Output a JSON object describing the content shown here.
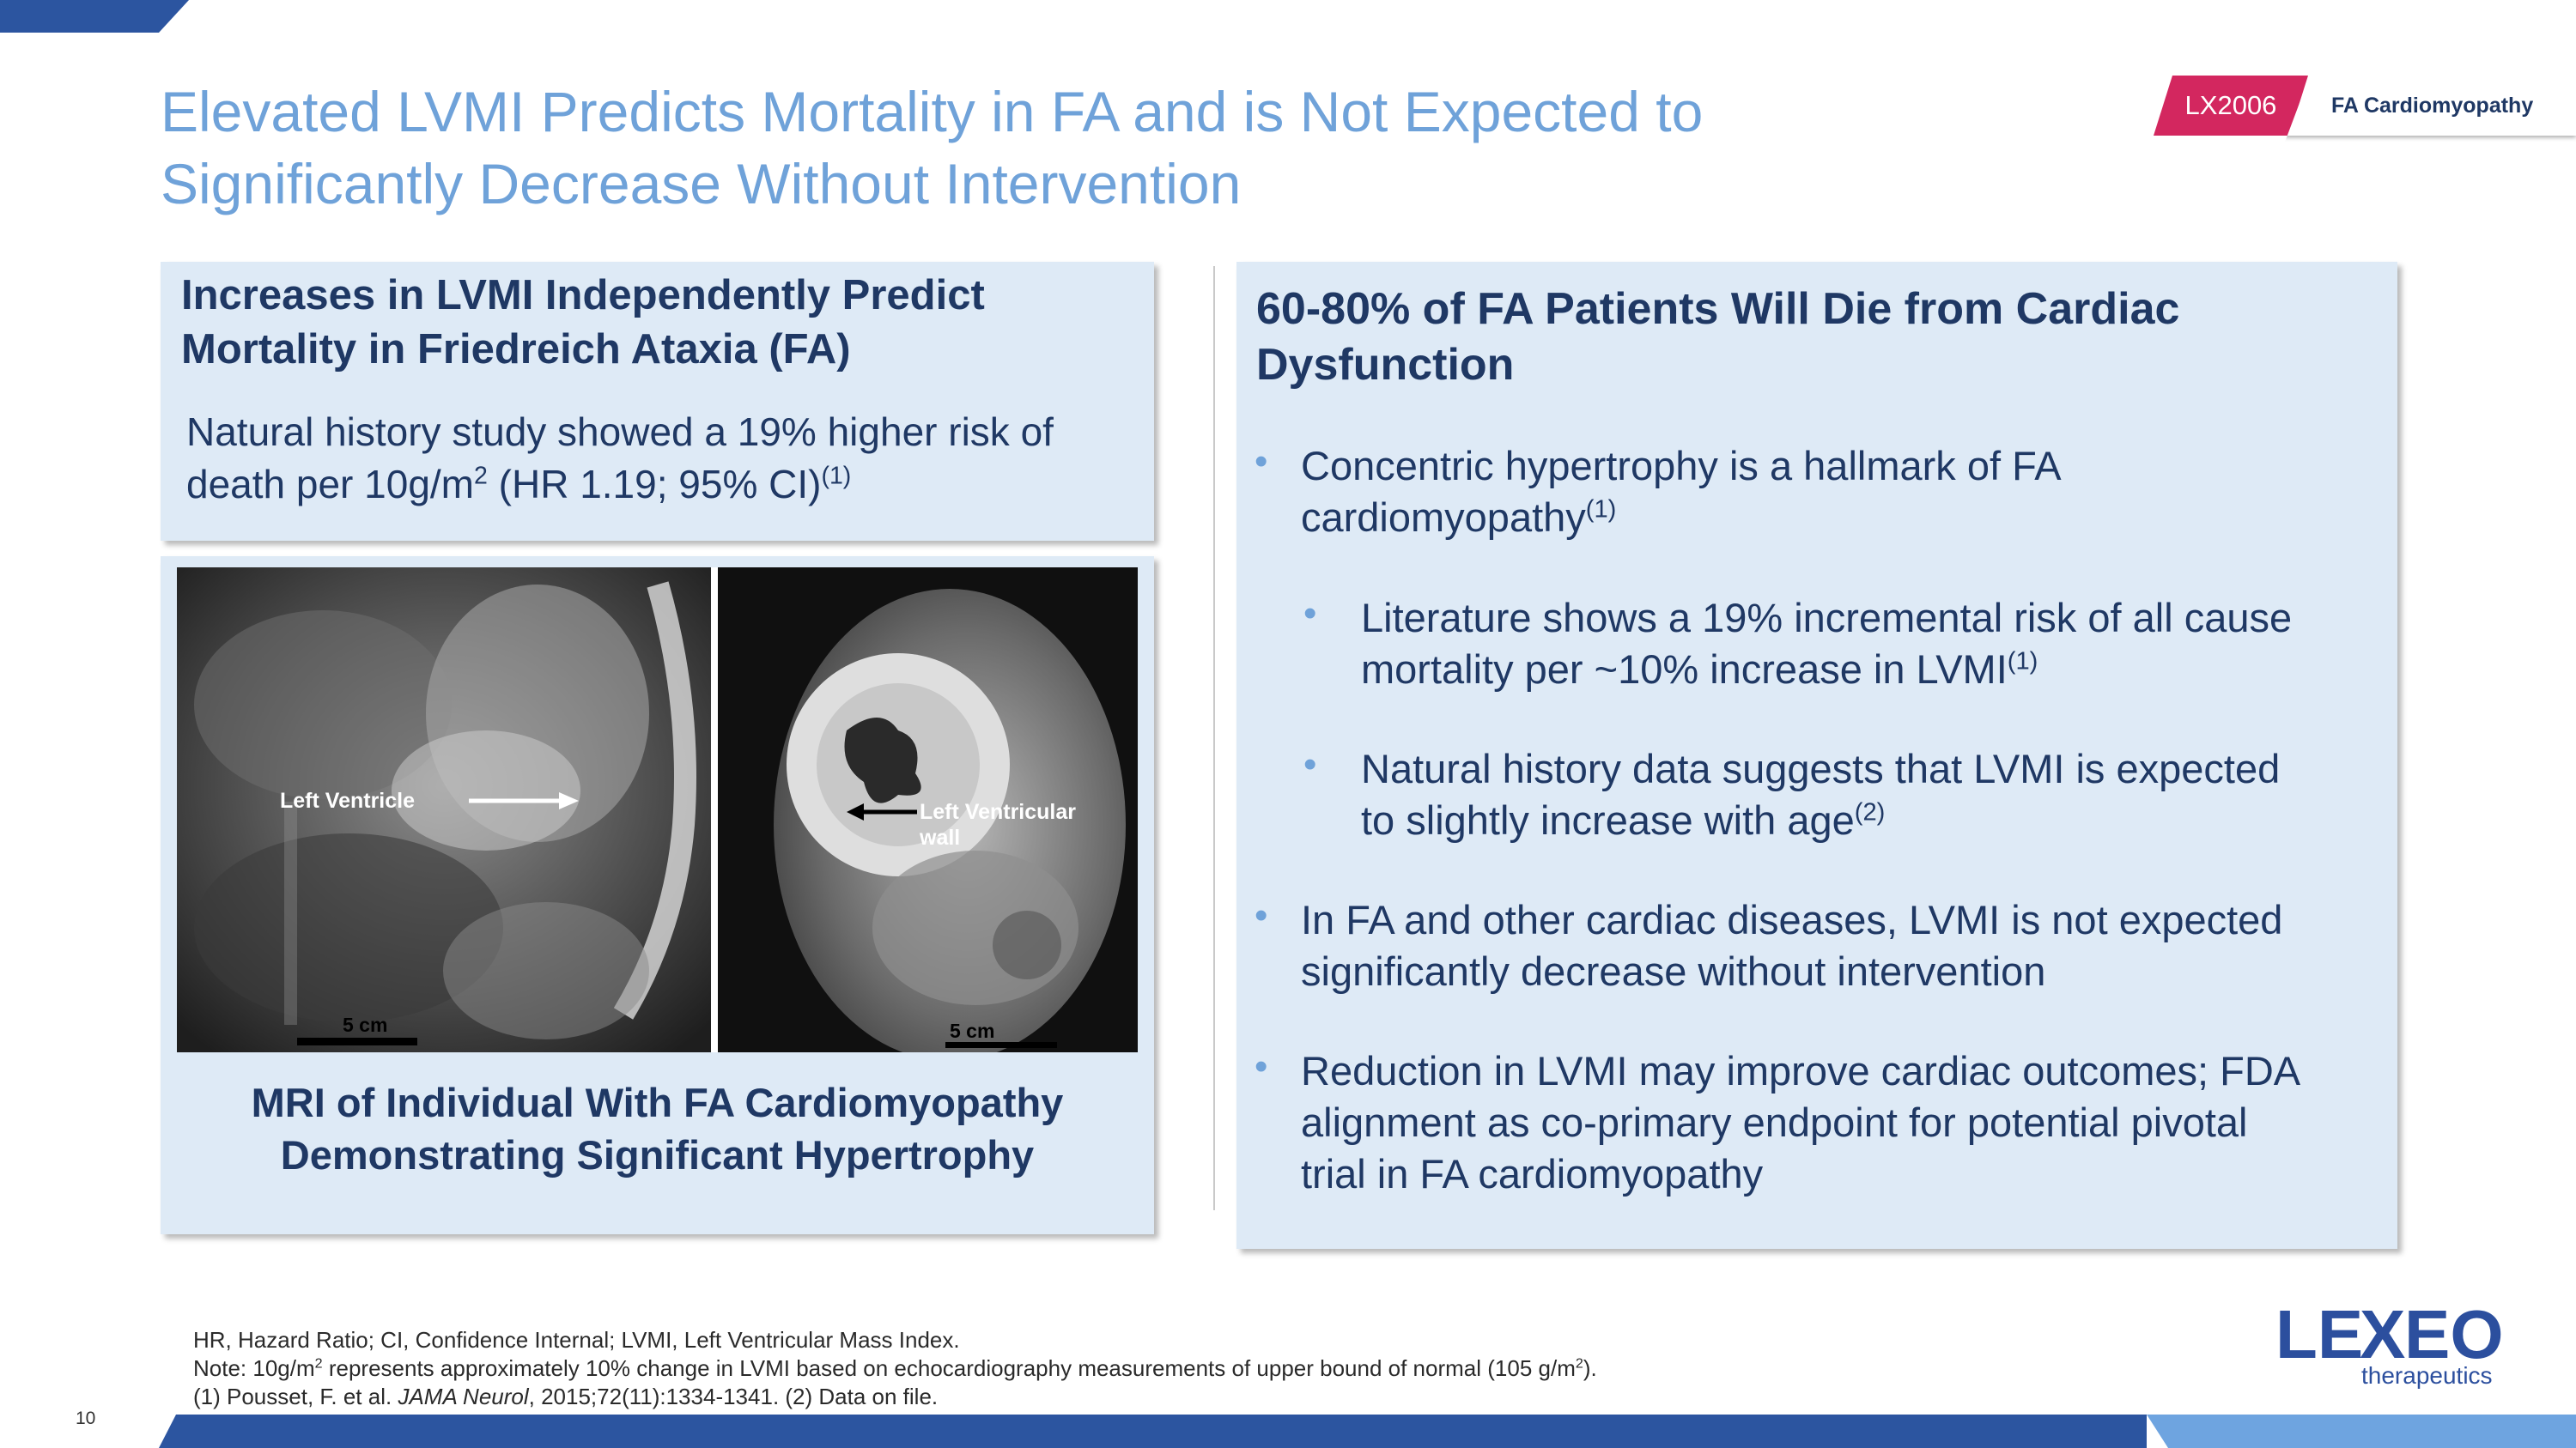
{
  "header": {
    "title_line1": "Elevated LVMI Predicts Mortality in FA and is Not Expected to",
    "title_line2": "Significantly Decrease Without Intervention",
    "tag_code": "LX2006",
    "tag_label": "FA Cardiomyopathy"
  },
  "left_panel": {
    "heading_line1": "Increases in LVMI Independently Predict",
    "heading_line2": "Mortality in Friedreich Ataxia (FA)",
    "body_line1": "Natural history study showed a 19% higher risk of",
    "body_line2_pre": "death per 10g/m",
    "body_line2_sup": "2",
    "body_line2_post": " (HR 1.19; 95% CI)",
    "body_ref": "(1)"
  },
  "image_panel": {
    "label_left": "Left Ventricle",
    "label_right_1": "Left Ventricular",
    "label_right_2": "wall",
    "scale_left": "5 cm",
    "scale_right": "5 cm",
    "caption_line1": "MRI of Individual With FA Cardiomyopathy",
    "caption_line2": "Demonstrating Significant Hypertrophy"
  },
  "right_panel": {
    "heading_line1": "60-80% of FA Patients Will Die from Cardiac",
    "heading_line2": "Dysfunction",
    "bullets": [
      {
        "line1": "Concentric hypertrophy is a hallmark of FA",
        "line2": "cardiomyopathy",
        "ref": "(1)",
        "line3": ""
      },
      {
        "line1": "Literature shows a 19% incremental risk of all cause",
        "line2": "mortality per ~10% increase in LVMI",
        "ref": "(1)",
        "line3": ""
      },
      {
        "line1": "Natural history data suggests that LVMI is expected",
        "line2": "to slightly increase with age",
        "ref": "(2)",
        "line3": ""
      },
      {
        "line1": "In FA and other cardiac diseases, LVMI is not expected",
        "line2": "significantly decrease without intervention",
        "ref": "",
        "line3": ""
      },
      {
        "line1": "Reduction in LVMI may improve cardiac outcomes; FDA",
        "line2": "alignment as co-primary endpoint for potential pivotal",
        "ref": "",
        "line3": "trial in FA cardiomyopathy"
      }
    ]
  },
  "footnotes": {
    "line1": "HR, Hazard Ratio; CI, Confidence Internal; LVMI, Left Ventricular Mass Index.",
    "line2_pre": "Note: 10g/m",
    "line2_sup1": "2",
    "line2_mid": " represents approximately 10% change in LVMI based on echocardiography measurements of upper bound of normal (105 g/m",
    "line2_sup2": "2",
    "line2_post": ").",
    "line3_pre": "(1) Pousset, F. et al. ",
    "line3_journal": "JAMA Neurol",
    "line3_post": ", 2015;72(11):1334-1341.  (2) Data on file."
  },
  "page_number": "10",
  "logo": {
    "wordmark_a": "LE",
    "wordmark_b": "X",
    "wordmark_c": "EO",
    "sub": "therapeutics"
  },
  "colors": {
    "navy": "#1f3864",
    "title_blue": "#6fa2d9",
    "accent_blue": "#2c55a0",
    "panel_bg": "#deeaf6",
    "tag_pink": "#d3275f"
  }
}
